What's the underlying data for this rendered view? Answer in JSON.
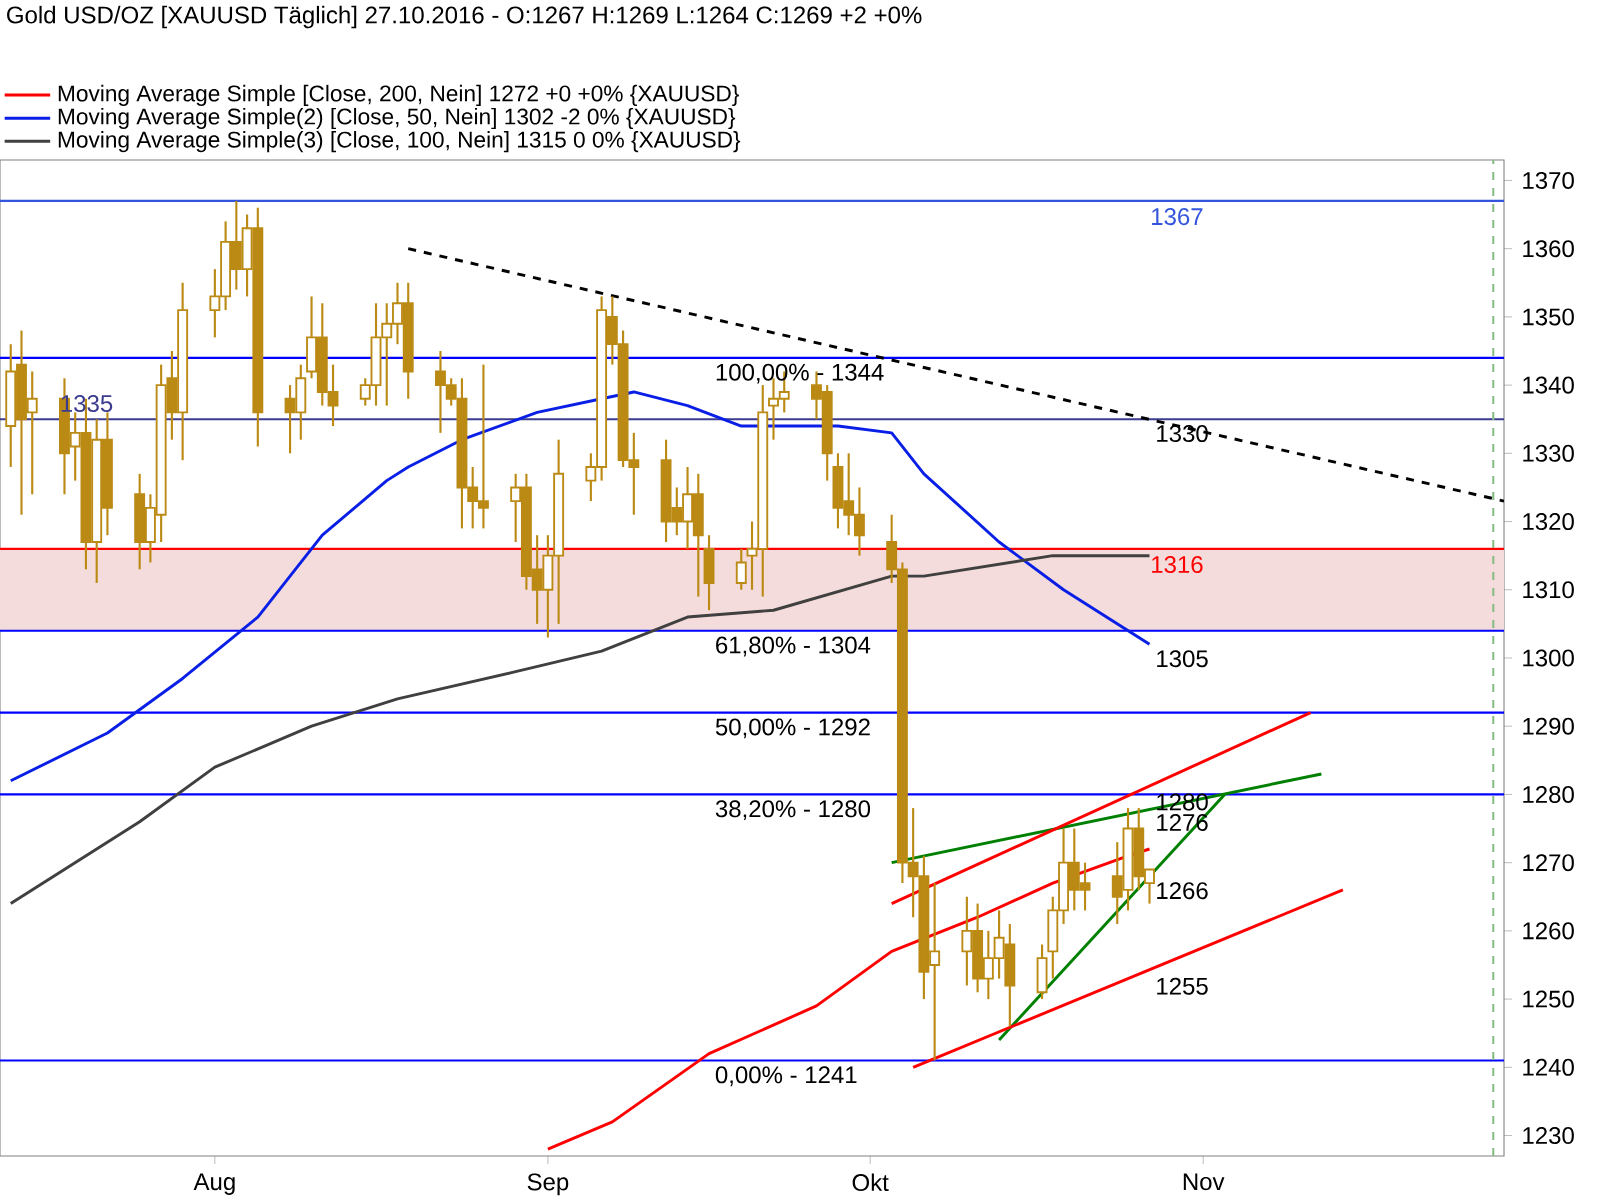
{
  "chart_data": {
    "type": "candlestick",
    "title": "Gold USD/OZ [XAUUSD Täglich] 27.10.2016 - O:1267 H:1269 L:1264 C:1269 +2 +0%",
    "color": "#bb8a14",
    "x": [
      "2016-07-13",
      "2016-07-14",
      "2016-07-15",
      "2016-07-18",
      "2016-07-19",
      "2016-07-20",
      "2016-07-21",
      "2016-07-22",
      "2016-07-25",
      "2016-07-26",
      "2016-07-27",
      "2016-07-28",
      "2016-07-29",
      "2016-08-01",
      "2016-08-02",
      "2016-08-03",
      "2016-08-04",
      "2016-08-05",
      "2016-08-08",
      "2016-08-09",
      "2016-08-10",
      "2016-08-11",
      "2016-08-12",
      "2016-08-15",
      "2016-08-16",
      "2016-08-17",
      "2016-08-18",
      "2016-08-19",
      "2016-08-22",
      "2016-08-23",
      "2016-08-24",
      "2016-08-25",
      "2016-08-26",
      "2016-08-29",
      "2016-08-30",
      "2016-08-31",
      "2016-09-01",
      "2016-09-02",
      "2016-09-05",
      "2016-09-06",
      "2016-09-07",
      "2016-09-08",
      "2016-09-09",
      "2016-09-12",
      "2016-09-13",
      "2016-09-14",
      "2016-09-15",
      "2016-09-16",
      "2016-09-19",
      "2016-09-20",
      "2016-09-21",
      "2016-09-22",
      "2016-09-23",
      "2016-09-26",
      "2016-09-27",
      "2016-09-28",
      "2016-09-29",
      "2016-09-30",
      "2016-10-03",
      "2016-10-04",
      "2016-10-05",
      "2016-10-06",
      "2016-10-07",
      "2016-10-10",
      "2016-10-11",
      "2016-10-12",
      "2016-10-13",
      "2016-10-14",
      "2016-10-17",
      "2016-10-18",
      "2016-10-19",
      "2016-10-20",
      "2016-10-21",
      "2016-10-24",
      "2016-10-25",
      "2016-10-26",
      "2016-10-27"
    ],
    "ohlc": [
      [
        1334,
        1346,
        1328,
        1342
      ],
      [
        1343,
        1348,
        1321,
        1335
      ],
      [
        1336,
        1342,
        1324,
        1338
      ],
      [
        1338,
        1341,
        1324,
        1330
      ],
      [
        1331,
        1336,
        1326,
        1333
      ],
      [
        1333,
        1338,
        1313,
        1317
      ],
      [
        1317,
        1335,
        1311,
        1332
      ],
      [
        1332,
        1336,
        1318,
        1322
      ],
      [
        1324,
        1327,
        1313,
        1317
      ],
      [
        1317,
        1324,
        1314,
        1322
      ],
      [
        1321,
        1343,
        1317,
        1340
      ],
      [
        1341,
        1345,
        1332,
        1336
      ],
      [
        1336,
        1355,
        1329,
        1351
      ],
      [
        1351,
        1357,
        1347,
        1353
      ],
      [
        1353,
        1364,
        1351,
        1361
      ],
      [
        1361,
        1367,
        1354,
        1357
      ],
      [
        1357,
        1365,
        1353,
        1363
      ],
      [
        1363,
        1366,
        1331,
        1336
      ],
      [
        1338,
        1340,
        1330,
        1336
      ],
      [
        1336,
        1343,
        1332,
        1341
      ],
      [
        1342,
        1353,
        1341,
        1347
      ],
      [
        1347,
        1352,
        1337,
        1339
      ],
      [
        1339,
        1343,
        1334,
        1337
      ],
      [
        1338,
        1341,
        1337,
        1340
      ],
      [
        1340,
        1352,
        1337,
        1347
      ],
      [
        1347,
        1352,
        1337,
        1349
      ],
      [
        1349,
        1355,
        1346,
        1352
      ],
      [
        1352,
        1355,
        1338,
        1342
      ],
      [
        1342,
        1345,
        1333,
        1340
      ],
      [
        1340,
        1341,
        1337,
        1338
      ],
      [
        1338,
        1341,
        1319,
        1325
      ],
      [
        1325,
        1328,
        1319,
        1323
      ],
      [
        1323,
        1343,
        1319,
        1322
      ],
      [
        1323,
        1327,
        1317,
        1325
      ],
      [
        1325,
        1327,
        1310,
        1312
      ],
      [
        1313,
        1318,
        1305,
        1310
      ],
      [
        1310,
        1318,
        1303,
        1315
      ],
      [
        1315,
        1332,
        1305,
        1327
      ],
      [
        1326,
        1330,
        1323,
        1328
      ],
      [
        1328,
        1353,
        1326,
        1351
      ],
      [
        1350,
        1353,
        1343,
        1346
      ],
      [
        1346,
        1348,
        1328,
        1329
      ],
      [
        1329,
        1333,
        1321,
        1328
      ],
      [
        1329,
        1332,
        1317,
        1320
      ],
      [
        1322,
        1325,
        1318,
        1320
      ],
      [
        1320,
        1328,
        1316,
        1324
      ],
      [
        1324,
        1327,
        1309,
        1318
      ],
      [
        1316,
        1318,
        1307,
        1311
      ],
      [
        1311,
        1316,
        1310,
        1314
      ],
      [
        1315,
        1320,
        1310,
        1316
      ],
      [
        1316,
        1340,
        1309,
        1336
      ],
      [
        1337,
        1341,
        1332,
        1338
      ],
      [
        1338,
        1342,
        1336,
        1339
      ],
      [
        1340,
        1342,
        1335,
        1338
      ],
      [
        1339,
        1340,
        1326,
        1330
      ],
      [
        1328,
        1330,
        1319,
        1322
      ],
      [
        1323,
        1330,
        1318,
        1321
      ],
      [
        1321,
        1325,
        1315,
        1318
      ],
      [
        1317,
        1321,
        1311,
        1313
      ],
      [
        1313,
        1314,
        1267,
        1270
      ],
      [
        1270,
        1278,
        1262,
        1268
      ],
      [
        1268,
        1271,
        1250,
        1254
      ],
      [
        1255,
        1267,
        1241,
        1257
      ],
      [
        1257,
        1265,
        1252,
        1260
      ],
      [
        1260,
        1264,
        1251,
        1253
      ],
      [
        1253,
        1260,
        1250,
        1256
      ],
      [
        1256,
        1263,
        1253,
        1259
      ],
      [
        1258,
        1261,
        1246,
        1252
      ],
      [
        1251,
        1258,
        1250,
        1256
      ],
      [
        1257,
        1265,
        1253,
        1263
      ],
      [
        1263,
        1275,
        1261,
        1270
      ],
      [
        1270,
        1275,
        1263,
        1266
      ],
      [
        1267,
        1270,
        1263,
        1266
      ],
      [
        1268,
        1273,
        1261,
        1265
      ],
      [
        1266,
        1278,
        1263,
        1275
      ],
      [
        1275,
        1278,
        1266,
        1268
      ],
      [
        1267,
        1269,
        1264,
        1269
      ]
    ],
    "series": [
      {
        "name": "Moving Average Simple [Close, 200, Nein] 1272 +0 +0% {XAUUSD}",
        "type": "line",
        "color": "#ff0000",
        "x": [
          "2016-09-01",
          "2016-09-07",
          "2016-09-16",
          "2016-09-26",
          "2016-10-03",
          "2016-10-11",
          "2016-10-18",
          "2016-10-25",
          "2016-10-27"
        ],
        "values": [
          1228,
          1232,
          1242,
          1249,
          1257,
          1262,
          1267,
          1271,
          1272
        ]
      },
      {
        "name": "Moving Average Simple(2) [Close, 50, Nein] 1302 -2 0% {XAUUSD}",
        "type": "line",
        "color": "#0a1fe6",
        "x": [
          "2016-07-13",
          "2016-07-22",
          "2016-07-29",
          "2016-08-05",
          "2016-08-11",
          "2016-08-17",
          "2016-08-19",
          "2016-08-24",
          "2016-08-31",
          "2016-09-06",
          "2016-09-09",
          "2016-09-14",
          "2016-09-19",
          "2016-09-21",
          "2016-09-28",
          "2016-10-03",
          "2016-10-06",
          "2016-10-13",
          "2016-10-19",
          "2016-10-27"
        ],
        "values": [
          1282,
          1289,
          1297,
          1306,
          1318,
          1326,
          1328,
          1332,
          1336,
          1338,
          1339,
          1337,
          1334,
          1334,
          1334,
          1333,
          1327,
          1317,
          1310,
          1302
        ]
      },
      {
        "name": "Moving Average Simple(3) [Close, 100, Nein] 1315 0 0% {XAUUSD}",
        "type": "line",
        "color": "#404040",
        "x": [
          "2016-07-13",
          "2016-07-25",
          "2016-08-01",
          "2016-08-10",
          "2016-08-18",
          "2016-08-29",
          "2016-09-06",
          "2016-09-14",
          "2016-09-22",
          "2016-10-03",
          "2016-10-06",
          "2016-10-18",
          "2016-10-27"
        ],
        "values": [
          1264,
          1276,
          1284,
          1290,
          1294,
          1298,
          1301,
          1306,
          1307,
          1312,
          1312,
          1315,
          1315
        ]
      },
      {
        "type": "line",
        "color": "#000000",
        "line_style": "dashed",
        "x": [
          "2016-08-19",
          "2016-11-29"
        ],
        "values": [
          1360,
          1323
        ]
      },
      {
        "type": "line",
        "color": "#008000",
        "x": [
          "2016-10-03",
          "2016-11-12"
        ],
        "values": [
          1270,
          1283
        ]
      },
      {
        "type": "line",
        "color": "#008000",
        "x": [
          "2016-10-13",
          "2016-11-03"
        ],
        "values": [
          1244,
          1280
        ]
      },
      {
        "type": "line",
        "color": "#ff0000",
        "x": [
          "2016-10-03",
          "2016-11-11"
        ],
        "values": [
          1264,
          1292
        ]
      },
      {
        "type": "line",
        "color": "#ff0000",
        "x": [
          "2016-10-05",
          "2016-11-14"
        ],
        "values": [
          1240,
          1266
        ]
      }
    ],
    "xlim": [
      "2016-07-12",
      "2016-11-29"
    ],
    "xticks": [
      {
        "value": "2016-08-01",
        "label": "Aug"
      },
      {
        "value": "2016-09-01",
        "label": "Sep"
      },
      {
        "value": "2016-10-01",
        "label": "Okt"
      },
      {
        "value": "2016-11-01",
        "label": "Nov"
      }
    ],
    "ylim": [
      1227,
      1373
    ],
    "yticks": [
      1230,
      1240,
      1250,
      1260,
      1270,
      1280,
      1290,
      1300,
      1310,
      1320,
      1330,
      1340,
      1350,
      1360,
      1370
    ],
    "ref_lines": [
      {
        "axis": "y",
        "value": 1367,
        "label": "1367",
        "color": "#3355dd"
      },
      {
        "axis": "y",
        "value": 1344,
        "color": "#0000ff"
      },
      {
        "axis": "y",
        "value": 1335,
        "label": "1335",
        "color": "#3b3b8f"
      },
      {
        "axis": "y",
        "value": 1316,
        "label": "1316",
        "color": "#ff0000"
      },
      {
        "axis": "y",
        "value": 1304,
        "color": "#0000ff"
      },
      {
        "axis": "y",
        "value": 1292,
        "color": "#0000ff"
      },
      {
        "axis": "y",
        "value": 1280,
        "color": "#0000ff"
      },
      {
        "axis": "y",
        "value": 1241,
        "color": "#0000ff"
      },
      {
        "axis": "x",
        "value": "2016-11-28",
        "color": "#88bb88",
        "line_style": "dashed"
      }
    ],
    "bands": [
      {
        "axis": "y",
        "from": 1304,
        "to": 1316,
        "color": "#f5dcdc"
      }
    ],
    "annotations": [
      {
        "text": "100,00% - 1344",
        "x": "2016-09-16",
        "y": 1344
      },
      {
        "text": "61,80% - 1304",
        "x": "2016-09-16",
        "y": 1304
      },
      {
        "text": "50,00% - 1292",
        "x": "2016-09-16",
        "y": 1292
      },
      {
        "text": "38,20% - 1280",
        "x": "2016-09-16",
        "y": 1280
      },
      {
        "text": "0,00% - 1241",
        "x": "2016-09-16",
        "y": 1241
      },
      {
        "text": "1330",
        "x": "2016-10-27",
        "y": 1335
      },
      {
        "text": "1305",
        "x": "2016-10-27",
        "y": 1302
      },
      {
        "text": "1280",
        "x": "2016-10-27",
        "y": 1281
      },
      {
        "text": "1276",
        "x": "2016-10-27",
        "y": 1278
      },
      {
        "text": "1266",
        "x": "2016-10-27",
        "y": 1268
      },
      {
        "text": "1255",
        "x": "2016-10-27",
        "y": 1254
      }
    ],
    "legend": "top left"
  }
}
